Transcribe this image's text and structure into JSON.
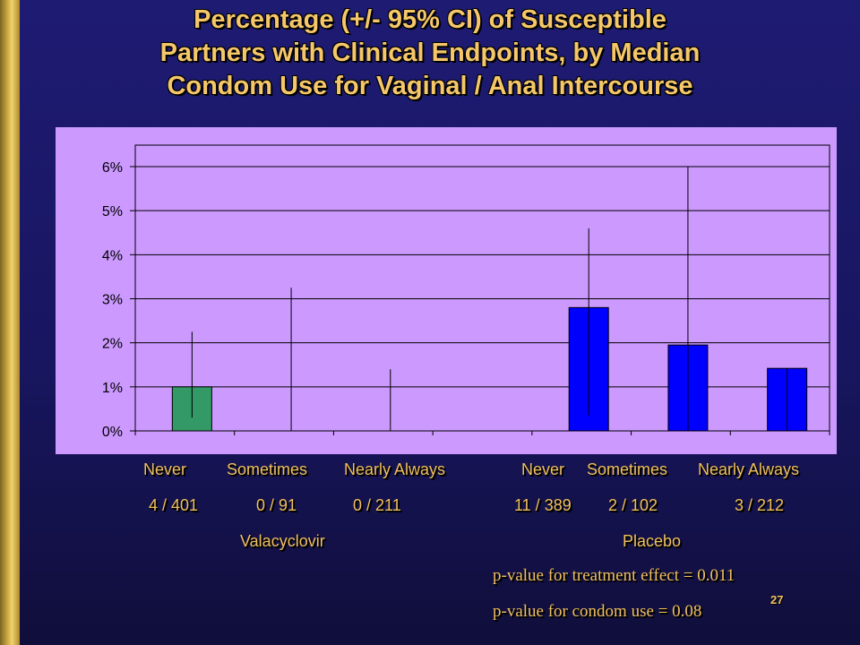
{
  "title_lines": [
    "Percentage (+/- 95% CI) of Susceptible",
    "Partners with Clinical Endpoints, by Median",
    "Condom Use for Vaginal / Anal Intercourse"
  ],
  "chart_data": {
    "type": "bar",
    "ylim": [
      0,
      6
    ],
    "y_ticks": [
      "0%",
      "1%",
      "2%",
      "3%",
      "4%",
      "5%",
      "6%"
    ],
    "grid": true,
    "categories": [
      "Never",
      "Sometimes",
      "Nearly Always",
      "Never",
      "Sometimes",
      "Nearly Always"
    ],
    "counts": [
      "4 / 401",
      "0 / 91",
      "0 / 211",
      "11 / 389",
      "2 / 102",
      "3 / 212"
    ],
    "groups": [
      "Valacyclovir",
      "Placebo"
    ],
    "values": [
      1.0,
      0,
      0,
      2.8,
      1.95,
      1.42
    ],
    "ci_low": [
      0.3,
      0,
      0,
      0.35,
      0,
      0
    ],
    "ci_high": [
      2.25,
      3.25,
      1.4,
      4.6,
      6.0,
      1.42
    ],
    "bar_colors": [
      "#339966",
      "#339966",
      "#339966",
      "#0000ff",
      "#0000ff",
      "#0000ff"
    ],
    "plot_area_color": "#cc99ff"
  },
  "pvalues": {
    "treatment": "p-value for treatment effect = 0.011",
    "condom": "p-value for condom use = 0.08"
  },
  "slide_number": "27"
}
